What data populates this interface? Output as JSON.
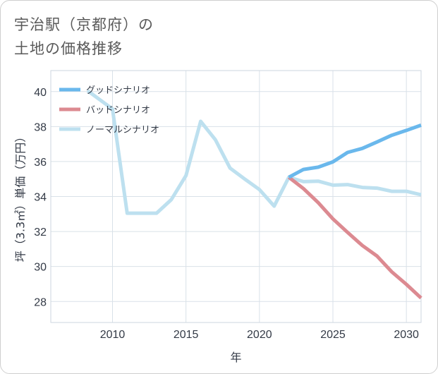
{
  "title": {
    "line1": "宇治駅（京都府）の",
    "line2": "土地の価格推移"
  },
  "chart_data": {
    "type": "line",
    "xlabel": "年",
    "ylabel": "坪（3.3㎡）単価（万円）",
    "xlim": [
      2005.8,
      2031
    ],
    "ylim": [
      26.8,
      41.2
    ],
    "x_ticks": [
      2010,
      2015,
      2020,
      2025,
      2030
    ],
    "y_ticks": [
      28,
      30,
      32,
      34,
      36,
      38,
      40
    ],
    "grid": true,
    "legend_position": "top-left",
    "series": [
      {
        "name": "グッドシナリオ",
        "color": "#6ab8ec",
        "x": [
          2022,
          2023,
          2024,
          2025,
          2026,
          2027,
          2028,
          2029,
          2030,
          2031
        ],
        "y": [
          35.1,
          35.55,
          35.68,
          35.98,
          36.52,
          36.75,
          37.12,
          37.5,
          37.78,
          38.08
        ]
      },
      {
        "name": "バッドシナリオ",
        "color": "#dc8a91",
        "x": [
          2022,
          2023,
          2024,
          2025,
          2026,
          2027,
          2028,
          2029,
          2030,
          2031
        ],
        "y": [
          35.1,
          34.45,
          33.65,
          32.72,
          31.95,
          31.2,
          30.6,
          29.7,
          28.98,
          28.2
        ]
      },
      {
        "name": "ノーマルシナリオ",
        "color": "#bde0ef",
        "x": [
          2008.3,
          2010,
          2011,
          2012,
          2013,
          2014,
          2015,
          2016,
          2017,
          2018,
          2019,
          2020,
          2021,
          2022,
          2023,
          2024,
          2025,
          2026,
          2027,
          2028,
          2029,
          2030,
          2031
        ],
        "y": [
          40.05,
          39.0,
          33.05,
          33.05,
          33.05,
          33.82,
          35.2,
          38.3,
          37.25,
          35.62,
          35.0,
          34.4,
          33.45,
          35.1,
          34.85,
          34.88,
          34.65,
          34.68,
          34.52,
          34.48,
          34.3,
          34.3,
          34.1
        ]
      }
    ]
  }
}
